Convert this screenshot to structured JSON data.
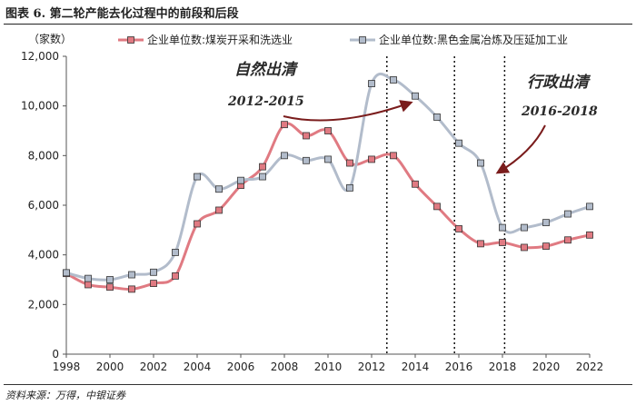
{
  "figure": {
    "title": "图表 6. 第二轮产能去化过程中的前段和后段",
    "source": "资料来源：万得，中银证券"
  },
  "chart_data": {
    "type": "line",
    "ylabel": "（家数）",
    "xlabel": "",
    "ylim": [
      0,
      12000
    ],
    "xlim": [
      1998,
      2022
    ],
    "y_ticks": [
      "0",
      "2,000",
      "4,000",
      "6,000",
      "8,000",
      "10,000",
      "12,000"
    ],
    "x_ticks": [
      "1998",
      "2000",
      "2002",
      "2004",
      "2006",
      "2008",
      "2010",
      "2012",
      "2014",
      "2016",
      "2018",
      "2020",
      "2022"
    ],
    "grid": false,
    "legend_position": "top",
    "x": [
      1998,
      1999,
      2000,
      2001,
      2002,
      2003,
      2004,
      2005,
      2006,
      2007,
      2008,
      2009,
      2010,
      2011,
      2012,
      2013,
      2014,
      2015,
      2016,
      2017,
      2018,
      2019,
      2020,
      2021,
      2022
    ],
    "series": [
      {
        "name": "企业单位数:煤炭开采和洗选业",
        "color": "#e07a82",
        "marker_color": "#e07a82",
        "values": [
          3250,
          2800,
          2700,
          2620,
          2850,
          3150,
          5250,
          5800,
          6800,
          7550,
          9250,
          8800,
          9000,
          7700,
          7850,
          8000,
          6850,
          5950,
          5050,
          4450,
          4500,
          4300,
          4350,
          4600,
          4800
        ]
      },
      {
        "name": "企业单位数:黑色金属冶炼及压延加工业",
        "color": "#b2bccb",
        "marker_color": "#b2bccb",
        "values": [
          3280,
          3050,
          3000,
          3200,
          3300,
          4100,
          7150,
          6650,
          7000,
          7150,
          8000,
          7800,
          7850,
          6700,
          10900,
          11050,
          10400,
          9550,
          8500,
          7700,
          5100,
          5100,
          5300,
          5650,
          5950
        ]
      }
    ],
    "annotations": [
      {
        "label": "自然出清",
        "range_label": "2012-2015"
      },
      {
        "label": "行政出清",
        "range_label": "2016-2018"
      }
    ],
    "vlines": [
      2012.7,
      2015.8,
      2018.1
    ]
  }
}
